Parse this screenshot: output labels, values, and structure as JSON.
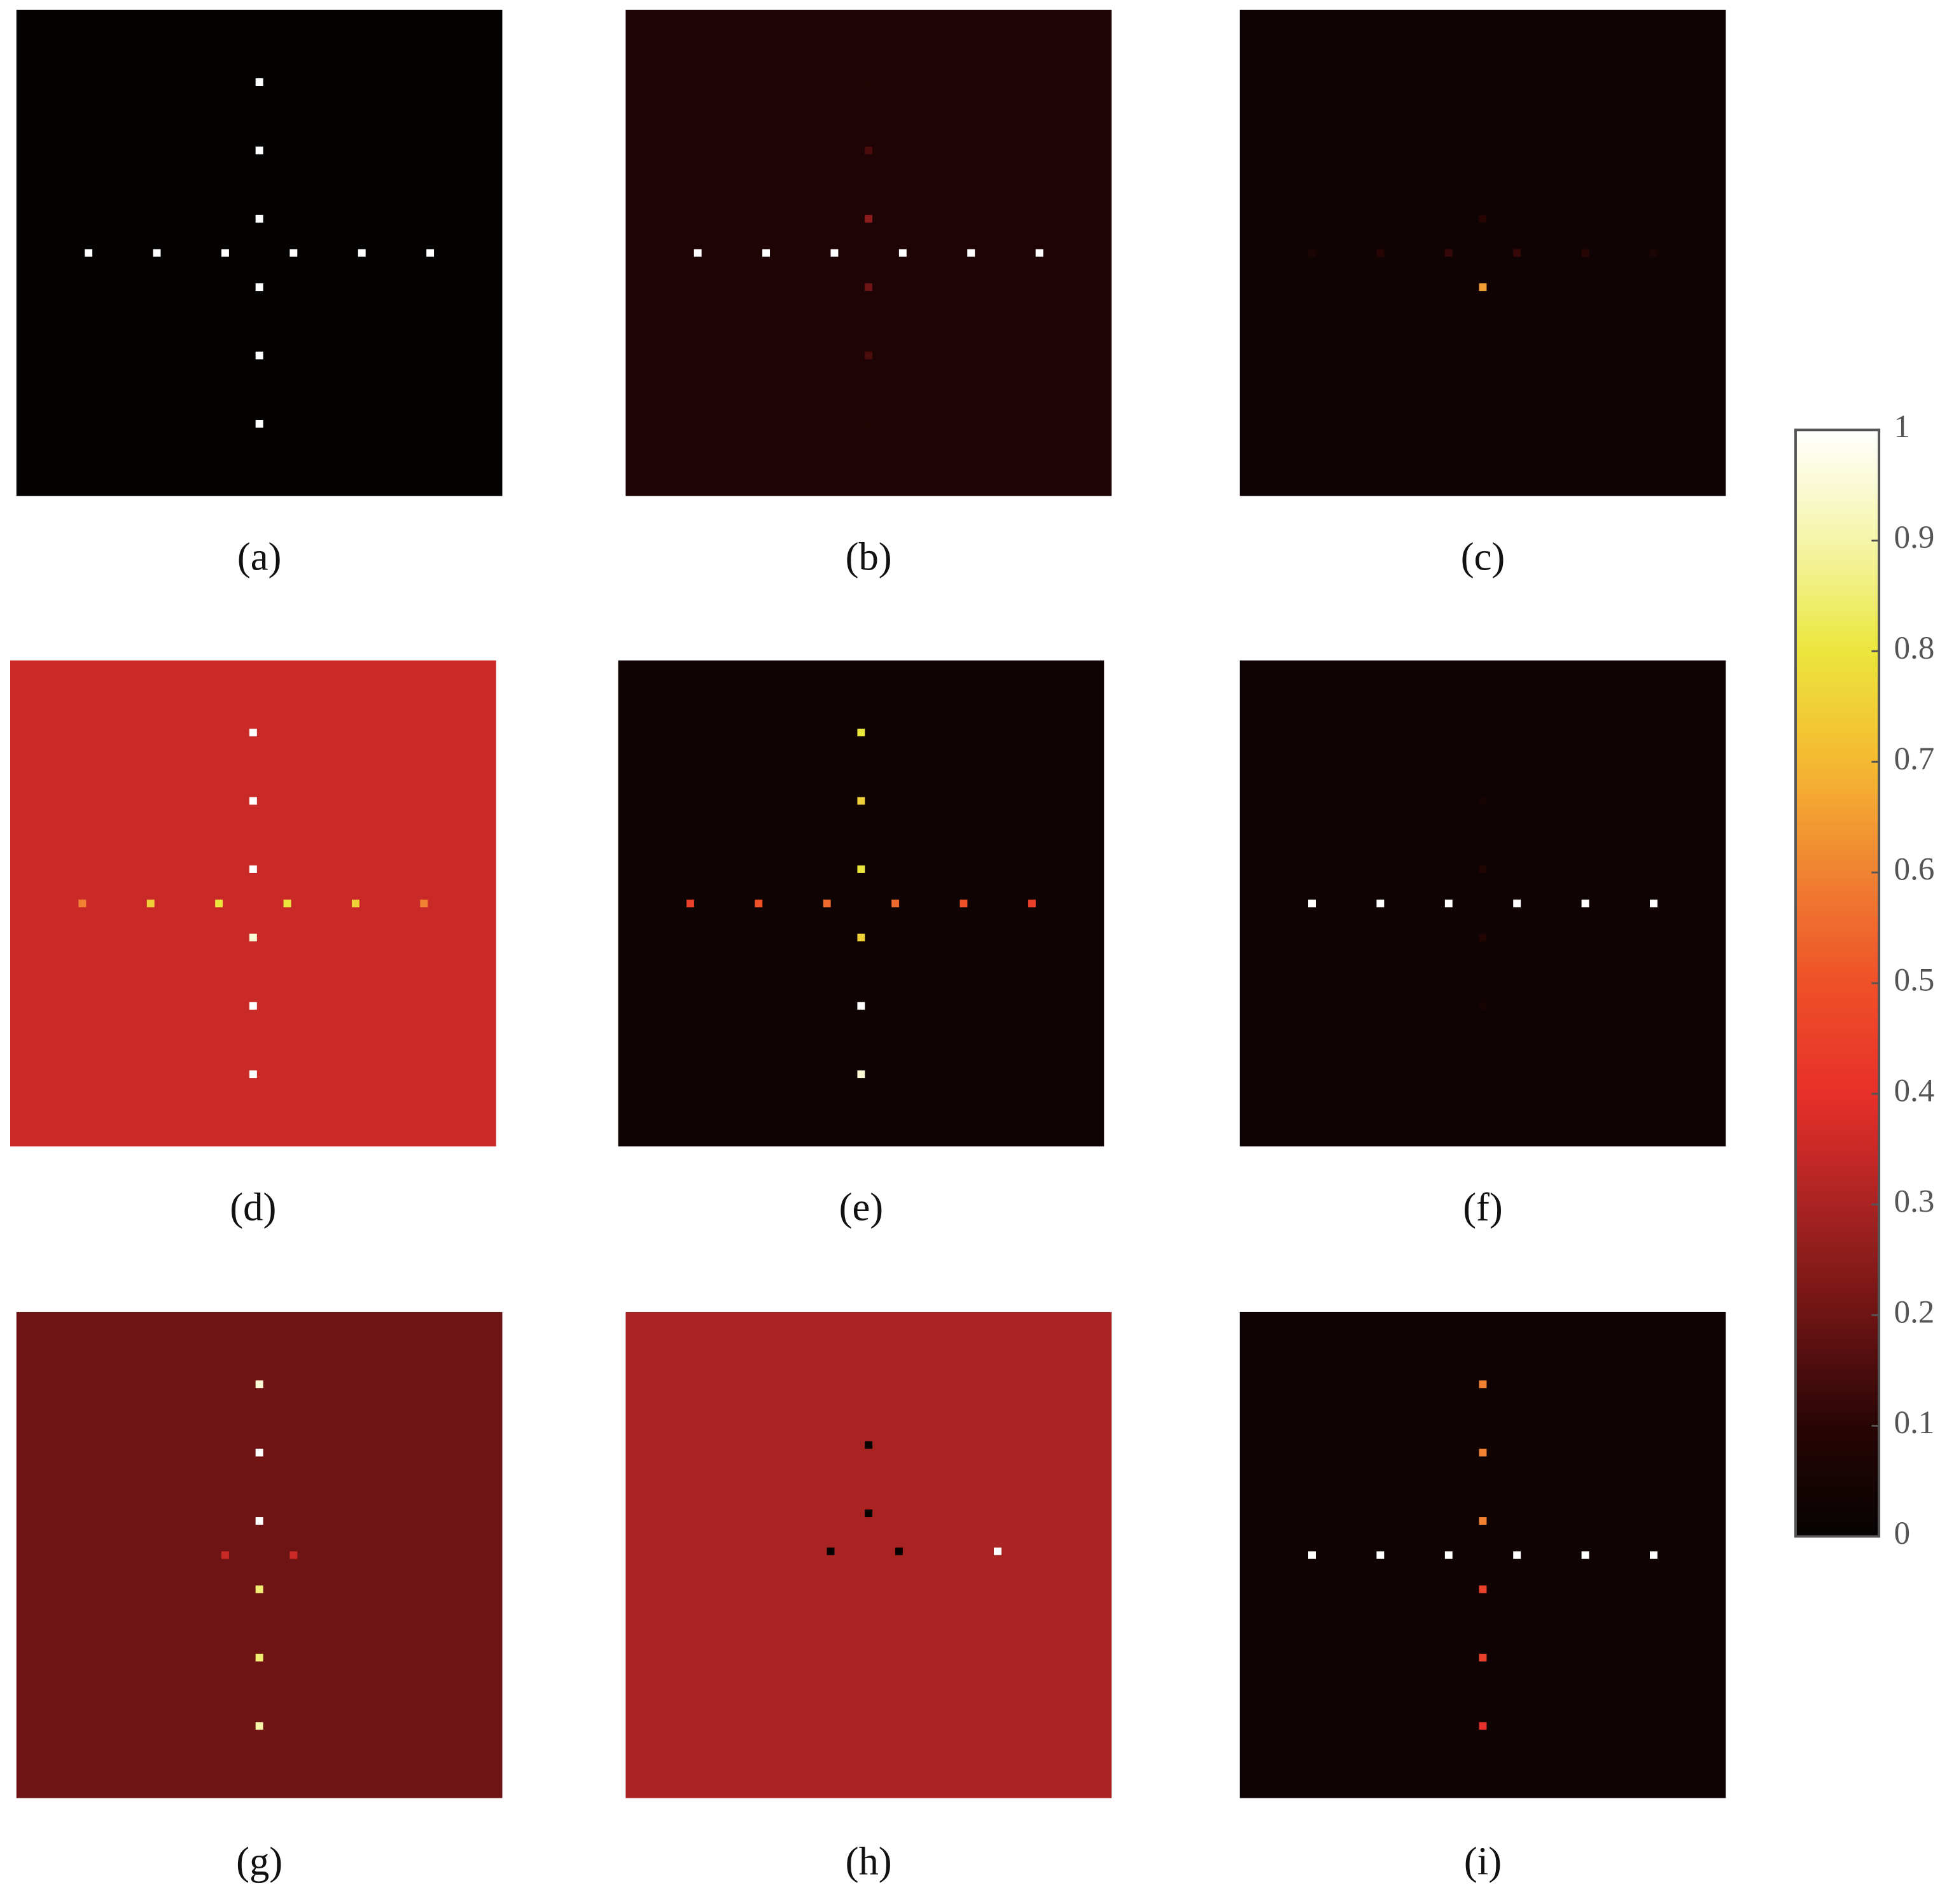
{
  "chart_data": [
    {
      "type": "heatmap",
      "label": "(a)",
      "xlim": [
        -64,
        64
      ],
      "ylim": [
        -64,
        64
      ],
      "colormap": "hot",
      "background": 0,
      "points": [
        {
          "x": -45,
          "y": 0,
          "value": 1
        },
        {
          "x": -27,
          "y": 0,
          "value": 1
        },
        {
          "x": -9,
          "y": 0,
          "value": 1
        },
        {
          "x": 9,
          "y": 0,
          "value": 1
        },
        {
          "x": 27,
          "y": 0,
          "value": 1
        },
        {
          "x": 45,
          "y": 0,
          "value": 1
        },
        {
          "x": 0,
          "y": 45,
          "value": 1
        },
        {
          "x": 0,
          "y": 27,
          "value": 1
        },
        {
          "x": 0,
          "y": 9,
          "value": 1
        },
        {
          "x": 0,
          "y": -9,
          "value": 1
        },
        {
          "x": 0,
          "y": -27,
          "value": 1
        },
        {
          "x": 0,
          "y": -45,
          "value": 1
        }
      ]
    },
    {
      "type": "heatmap",
      "label": "(b)",
      "xlim": [
        -64,
        64
      ],
      "ylim": [
        -64,
        64
      ],
      "colormap": "hot",
      "background": 0.07,
      "points": [
        {
          "x": -45,
          "y": 0,
          "value": 1
        },
        {
          "x": -27,
          "y": 0,
          "value": 1
        },
        {
          "x": -9,
          "y": 0,
          "value": 1
        },
        {
          "x": 9,
          "y": 0,
          "value": 1
        },
        {
          "x": 27,
          "y": 0,
          "value": 1
        },
        {
          "x": 45,
          "y": 0,
          "value": 1
        },
        {
          "x": 0,
          "y": 45,
          "value": 0.08
        },
        {
          "x": 0,
          "y": 27,
          "value": 0.15
        },
        {
          "x": 0,
          "y": 9,
          "value": 0.25
        },
        {
          "x": 0,
          "y": -9,
          "value": 0.2
        },
        {
          "x": 0,
          "y": -27,
          "value": 0.15
        },
        {
          "x": 0,
          "y": -45,
          "value": 0.08
        }
      ]
    },
    {
      "type": "heatmap",
      "label": "(c)",
      "xlim": [
        -64,
        64
      ],
      "ylim": [
        -64,
        64
      ],
      "colormap": "hot",
      "background": 0.03,
      "points": [
        {
          "x": -45,
          "y": 0,
          "value": 0.06
        },
        {
          "x": -27,
          "y": 0,
          "value": 0.1
        },
        {
          "x": -9,
          "y": 0,
          "value": 0.12
        },
        {
          "x": 9,
          "y": 0,
          "value": 0.12
        },
        {
          "x": 27,
          "y": 0,
          "value": 0.1
        },
        {
          "x": 45,
          "y": 0,
          "value": 0.06
        },
        {
          "x": 0,
          "y": 9,
          "value": 0.1
        },
        {
          "x": 0,
          "y": -9,
          "value": 0.65
        }
      ]
    },
    {
      "type": "heatmap",
      "label": "(d)",
      "xlim": [
        -64,
        64
      ],
      "ylim": [
        -64,
        64
      ],
      "colormap": "hot",
      "background": 0.35,
      "points": [
        {
          "x": -45,
          "y": 0,
          "value": 0.6
        },
        {
          "x": -27,
          "y": 0,
          "value": 0.75
        },
        {
          "x": -9,
          "y": 0,
          "value": 0.8
        },
        {
          "x": 9,
          "y": 0,
          "value": 0.8
        },
        {
          "x": 27,
          "y": 0,
          "value": 0.75
        },
        {
          "x": 45,
          "y": 0,
          "value": 0.6
        },
        {
          "x": 0,
          "y": 45,
          "value": 1
        },
        {
          "x": 0,
          "y": 27,
          "value": 1
        },
        {
          "x": 0,
          "y": 9,
          "value": 1
        },
        {
          "x": 0,
          "y": -9,
          "value": 0.95
        },
        {
          "x": 0,
          "y": -27,
          "value": 1
        },
        {
          "x": 0,
          "y": -45,
          "value": 1
        }
      ]
    },
    {
      "type": "heatmap",
      "label": "(e)",
      "xlim": [
        -64,
        64
      ],
      "ylim": [
        -64,
        64
      ],
      "colormap": "hot",
      "background": 0.03,
      "points": [
        {
          "x": -45,
          "y": 0,
          "value": 0.45
        },
        {
          "x": -27,
          "y": 0,
          "value": 0.5
        },
        {
          "x": -9,
          "y": 0,
          "value": 0.55
        },
        {
          "x": 9,
          "y": 0,
          "value": 0.55
        },
        {
          "x": 27,
          "y": 0,
          "value": 0.5
        },
        {
          "x": 45,
          "y": 0,
          "value": 0.45
        },
        {
          "x": 0,
          "y": 45,
          "value": 0.8
        },
        {
          "x": 0,
          "y": 27,
          "value": 0.75
        },
        {
          "x": 0,
          "y": 9,
          "value": 0.8
        },
        {
          "x": 0,
          "y": -9,
          "value": 0.75
        },
        {
          "x": 0,
          "y": -27,
          "value": 1
        },
        {
          "x": 0,
          "y": -45,
          "value": 0.95
        }
      ]
    },
    {
      "type": "heatmap",
      "label": "(f)",
      "xlim": [
        -64,
        64
      ],
      "ylim": [
        -64,
        64
      ],
      "colormap": "hot",
      "background": 0.03,
      "points": [
        {
          "x": -45,
          "y": 0,
          "value": 1
        },
        {
          "x": -27,
          "y": 0,
          "value": 1
        },
        {
          "x": -9,
          "y": 0,
          "value": 1
        },
        {
          "x": 9,
          "y": 0,
          "value": 1
        },
        {
          "x": 27,
          "y": 0,
          "value": 1
        },
        {
          "x": 45,
          "y": 0,
          "value": 1
        },
        {
          "x": 0,
          "y": 27,
          "value": 0.05
        },
        {
          "x": 0,
          "y": 9,
          "value": 0.08
        },
        {
          "x": 0,
          "y": -9,
          "value": 0.08
        },
        {
          "x": 0,
          "y": -27,
          "value": 0.05
        }
      ]
    },
    {
      "type": "heatmap",
      "label": "(g)",
      "xlim": [
        -64,
        64
      ],
      "ylim": [
        -64,
        64
      ],
      "colormap": "hot",
      "background": 0.2,
      "points": [
        {
          "x": -9,
          "y": 0,
          "value": 0.35
        },
        {
          "x": 9,
          "y": 0,
          "value": 0.35
        },
        {
          "x": 0,
          "y": 45,
          "value": 0.95
        },
        {
          "x": 0,
          "y": 27,
          "value": 1
        },
        {
          "x": 0,
          "y": 9,
          "value": 1
        },
        {
          "x": 0,
          "y": -9,
          "value": 0.85
        },
        {
          "x": 0,
          "y": -27,
          "value": 0.85
        },
        {
          "x": 0,
          "y": -45,
          "value": 0.9
        }
      ]
    },
    {
      "type": "heatmap",
      "label": "(h)",
      "xlim": [
        -64,
        64
      ],
      "ylim": [
        -64,
        64
      ],
      "colormap": "hot",
      "background": 0.3,
      "points": [
        {
          "x": 34,
          "y": 1,
          "value": 1
        },
        {
          "x": 0,
          "y": 29,
          "value": 0
        },
        {
          "x": 0,
          "y": 11,
          "value": 0
        },
        {
          "x": -10,
          "y": 1,
          "value": 0
        },
        {
          "x": 8,
          "y": 1,
          "value": 0
        }
      ]
    },
    {
      "type": "heatmap",
      "label": "(i)",
      "xlim": [
        -64,
        64
      ],
      "ylim": [
        -64,
        64
      ],
      "colormap": "hot",
      "background": 0.03,
      "points": [
        {
          "x": -45,
          "y": 0,
          "value": 1
        },
        {
          "x": -27,
          "y": 0,
          "value": 1
        },
        {
          "x": -9,
          "y": 0,
          "value": 1
        },
        {
          "x": 9,
          "y": 0,
          "value": 1
        },
        {
          "x": 27,
          "y": 0,
          "value": 1
        },
        {
          "x": 45,
          "y": 0,
          "value": 1
        },
        {
          "x": 0,
          "y": 45,
          "value": 0.6
        },
        {
          "x": 0,
          "y": 27,
          "value": 0.6
        },
        {
          "x": 0,
          "y": 9,
          "value": 0.6
        },
        {
          "x": 0,
          "y": -9,
          "value": 0.45
        },
        {
          "x": 0,
          "y": -27,
          "value": 0.45
        },
        {
          "x": 0,
          "y": -45,
          "value": 0.4
        }
      ]
    },
    {
      "type": "colorbar",
      "colormap": "hot",
      "ylim": [
        0,
        1
      ],
      "yticks": [
        0,
        0.1,
        0.2,
        0.3,
        0.4,
        0.5,
        0.6,
        0.7,
        0.8,
        0.9,
        1
      ]
    }
  ]
}
